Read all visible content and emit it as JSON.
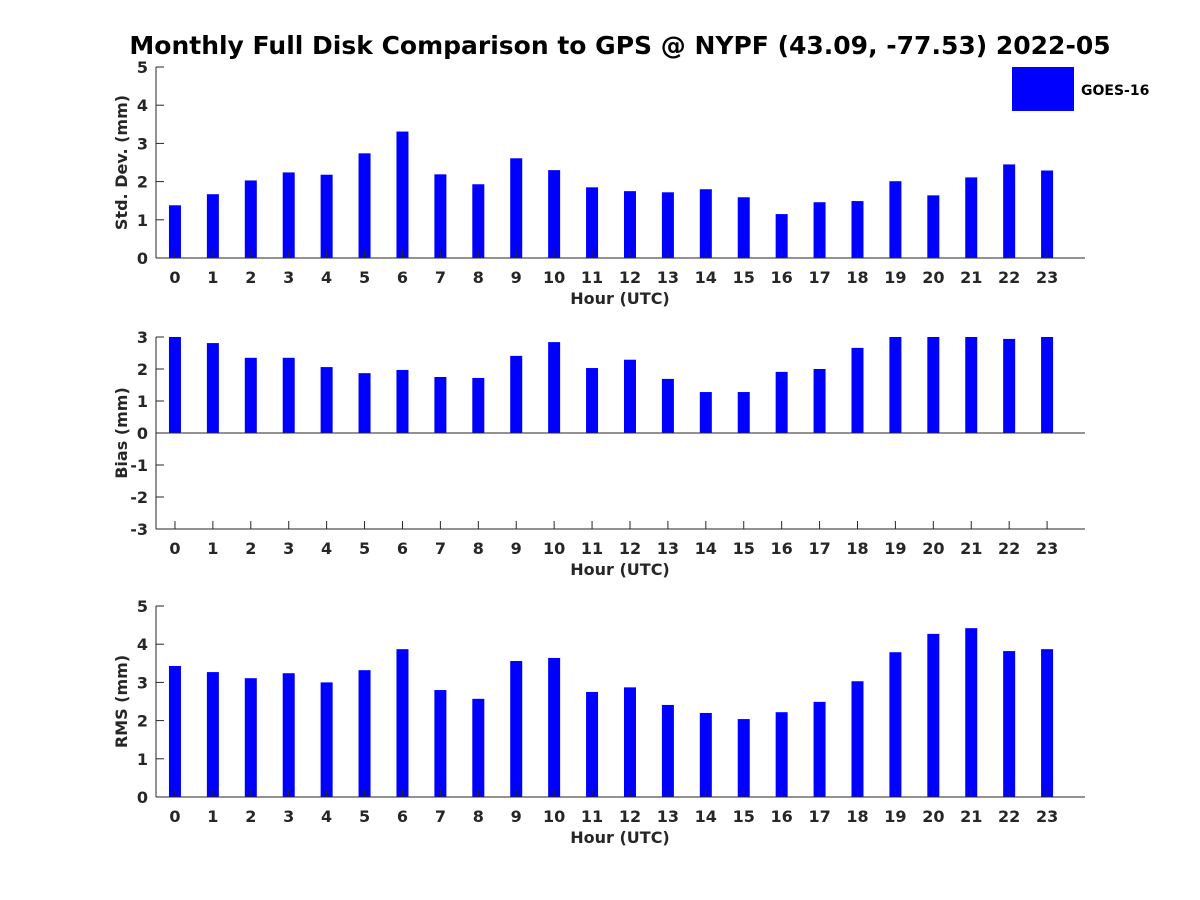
{
  "figure": {
    "title": "Monthly Full Disk Comparison to GPS @ NYPF (43.09, -77.53) 2022-05",
    "legend": {
      "label": "GOES-16",
      "color": "#0000ff"
    }
  },
  "chart_data": [
    {
      "type": "bar",
      "xlabel": "Hour (UTC)",
      "ylabel": "Std. Dev. (mm)",
      "ylim": [
        0,
        5
      ],
      "yticks": [
        0,
        1,
        2,
        3,
        4,
        5
      ],
      "categories": [
        "0",
        "1",
        "2",
        "3",
        "4",
        "5",
        "6",
        "7",
        "8",
        "9",
        "10",
        "11",
        "12",
        "13",
        "14",
        "15",
        "16",
        "17",
        "18",
        "19",
        "20",
        "21",
        "22",
        "23"
      ],
      "series": [
        {
          "name": "GOES-16",
          "color": "#0000ff",
          "values": [
            1.38,
            1.67,
            2.03,
            2.24,
            2.18,
            2.74,
            3.31,
            2.19,
            1.93,
            2.61,
            2.3,
            1.85,
            1.75,
            1.72,
            1.8,
            1.59,
            1.15,
            1.46,
            1.49,
            2.01,
            1.64,
            2.11,
            2.45,
            2.29
          ]
        }
      ],
      "legend": "top-right",
      "grid": false
    },
    {
      "type": "bar",
      "xlabel": "Hour (UTC)",
      "ylabel": "Bias (mm)",
      "ylim": [
        -3,
        3
      ],
      "yticks": [
        -3,
        -2,
        -1,
        0,
        1,
        2,
        3
      ],
      "categories": [
        "0",
        "1",
        "2",
        "3",
        "4",
        "5",
        "6",
        "7",
        "8",
        "9",
        "10",
        "11",
        "12",
        "13",
        "14",
        "15",
        "16",
        "17",
        "18",
        "19",
        "20",
        "21",
        "22",
        "23"
      ],
      "series": [
        {
          "name": "GOES-16",
          "color": "#0000ff",
          "values": [
            3.0,
            2.81,
            2.35,
            2.35,
            2.06,
            1.87,
            1.97,
            1.75,
            1.72,
            2.41,
            2.84,
            2.03,
            2.29,
            1.69,
            1.28,
            1.28,
            1.91,
            2.0,
            2.66,
            3.0,
            3.0,
            3.0,
            2.94,
            3.0
          ]
        }
      ],
      "grid": false
    },
    {
      "type": "bar",
      "xlabel": "Hour (UTC)",
      "ylabel": "RMS (mm)",
      "ylim": [
        0,
        5
      ],
      "yticks": [
        0,
        1,
        2,
        3,
        4,
        5
      ],
      "categories": [
        "0",
        "1",
        "2",
        "3",
        "4",
        "5",
        "6",
        "7",
        "8",
        "9",
        "10",
        "11",
        "12",
        "13",
        "14",
        "15",
        "16",
        "17",
        "18",
        "19",
        "20",
        "21",
        "22",
        "23"
      ],
      "series": [
        {
          "name": "GOES-16",
          "color": "#0000ff",
          "values": [
            3.43,
            3.27,
            3.11,
            3.24,
            3.0,
            3.32,
            3.87,
            2.8,
            2.57,
            3.56,
            3.64,
            2.75,
            2.87,
            2.41,
            2.2,
            2.04,
            2.22,
            2.49,
            3.03,
            3.79,
            4.27,
            4.42,
            3.82,
            3.87
          ]
        }
      ],
      "grid": false
    }
  ]
}
